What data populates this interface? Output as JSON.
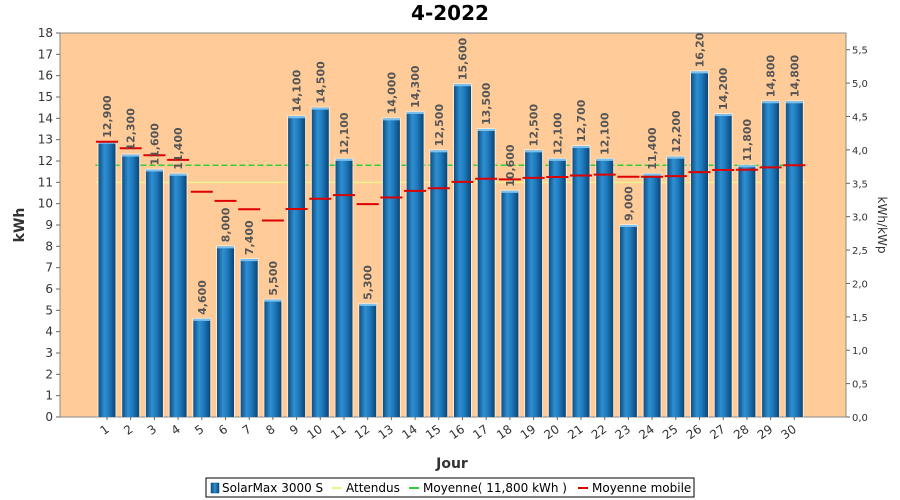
{
  "chart_data": {
    "type": "bar",
    "title": "4-2022",
    "xlabel": "Jour",
    "ylabel": "kWh",
    "y2label": "kWh/kWp",
    "ylim": [
      0,
      18
    ],
    "y2lim": [
      0,
      5.75
    ],
    "y_ticks": [
      0,
      1,
      2,
      3,
      4,
      5,
      6,
      7,
      8,
      9,
      10,
      11,
      12,
      13,
      14,
      15,
      16,
      17,
      18
    ],
    "y2_ticks": [
      "0,0",
      "0,5",
      "1,0",
      "1,5",
      "2,0",
      "2,5",
      "3,0",
      "3,5",
      "4,0",
      "4,5",
      "5,0",
      "5,5"
    ],
    "y2_tick_values": [
      0,
      0.5,
      1.0,
      1.5,
      2.0,
      2.5,
      3.0,
      3.5,
      4.0,
      4.5,
      5.0,
      5.5
    ],
    "categories": [
      "1",
      "2",
      "3",
      "4",
      "5",
      "6",
      "7",
      "8",
      "9",
      "10",
      "11",
      "12",
      "13",
      "14",
      "15",
      "16",
      "17",
      "18",
      "19",
      "20",
      "21",
      "22",
      "23",
      "24",
      "25",
      "26",
      "27",
      "28",
      "29",
      "30"
    ],
    "series": [
      {
        "name": "SolarMax 3000 S",
        "kind": "bar",
        "color": "#1a6fb0",
        "values": [
          12.9,
          12.3,
          11.6,
          11.4,
          4.6,
          8.0,
          7.4,
          5.5,
          14.1,
          14.5,
          12.1,
          5.3,
          14.0,
          14.3,
          12.5,
          15.6,
          13.5,
          10.6,
          12.5,
          12.1,
          12.7,
          12.1,
          9.0,
          11.4,
          12.2,
          16.2,
          14.2,
          11.8,
          14.8,
          14.8
        ],
        "labels": [
          "12,900",
          "12,300",
          "11,600",
          "11,400",
          "4,600",
          "8,000",
          "7,400",
          "5,500",
          "14,100",
          "14,500",
          "12,100",
          "5,300",
          "14,000",
          "14,300",
          "12,500",
          "15,600",
          "13,500",
          "10,600",
          "12,500",
          "12,100",
          "12,700",
          "12,100",
          "9,000",
          "11,400",
          "12,200",
          "16,20",
          "14,200",
          "11,800",
          "14,800",
          "14,800"
        ]
      },
      {
        "name": "Attendus",
        "kind": "hline",
        "color": "#f2f28a",
        "value": 11.0
      },
      {
        "name": "Moyenne( 11,800 kWh )",
        "kind": "hline",
        "color": "#33cc33",
        "value": 11.8
      },
      {
        "name": "Moyenne mobile",
        "kind": "segments",
        "color": "#dd0000",
        "values": [
          12.9,
          12.6,
          12.27,
          12.05,
          10.56,
          10.13,
          9.74,
          9.21,
          9.75,
          10.23,
          10.4,
          9.98,
          10.29,
          10.6,
          10.72,
          11.02,
          11.17,
          11.14,
          11.21,
          11.25,
          11.32,
          11.36,
          11.26,
          11.26,
          11.29,
          11.48,
          11.58,
          11.59,
          11.7,
          11.8
        ]
      }
    ],
    "legend_position": "bottom",
    "grid": false,
    "colors": {
      "plot_background": "#ffcc99",
      "bar": "#1a6fb0",
      "bar_highlight": "#5aa6dc",
      "moving_average": "#dd0000",
      "average": "#33cc33",
      "expected": "#f2f28a"
    }
  }
}
